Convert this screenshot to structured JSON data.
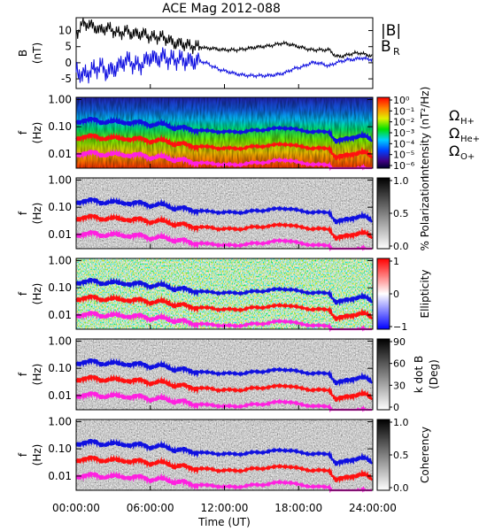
{
  "title": "ACE Mag 2012-088",
  "chart_data": [
    {
      "type": "line",
      "title": "ACE Mag 2012-088",
      "xlabel": "Time (UT)",
      "ylabel_main": "B",
      "ylabel_unit": "(nT)",
      "xlim": [
        0,
        24
      ],
      "ylim": [
        -8,
        14
      ],
      "yticks": [
        10,
        5,
        0,
        -5
      ],
      "legend_placement": "right",
      "series": [
        {
          "name": "|B|",
          "color": "#000000",
          "x": [
            0,
            0.5,
            1,
            1.5,
            2,
            2.5,
            3,
            3.5,
            4,
            4.5,
            5,
            5.5,
            6,
            6.5,
            7,
            7.5,
            8,
            8.5,
            9,
            9.5,
            10,
            10.5,
            11,
            11.5,
            12,
            12.5,
            13,
            13.5,
            14,
            14.5,
            15,
            15.5,
            16,
            16.5,
            17,
            17.5,
            18,
            18.5,
            19,
            19.5,
            20,
            20.5,
            21,
            21.5,
            22,
            22.5,
            23,
            23.5,
            24
          ],
          "values": [
            9,
            12,
            12,
            11,
            10,
            11,
            10,
            9,
            10,
            9,
            9,
            9,
            8,
            8,
            8,
            7,
            6,
            6,
            5.5,
            5,
            5,
            4.5,
            4.5,
            4.2,
            4,
            4,
            4,
            4.2,
            4.5,
            4.8,
            5,
            5.2,
            5.5,
            6,
            6,
            5.5,
            5,
            4.5,
            4,
            4,
            4,
            4,
            2,
            2,
            2.5,
            3,
            3,
            2.5,
            2
          ]
        },
        {
          "name": "B_R",
          "color": "#1010e0",
          "x": [
            0,
            0.5,
            1,
            1.5,
            2,
            2.5,
            3,
            3.5,
            4,
            4.5,
            5,
            5.5,
            6,
            6.5,
            7,
            7.5,
            8,
            8.5,
            9,
            9.5,
            10,
            10.5,
            11,
            11.5,
            12,
            12.5,
            13,
            13.5,
            14,
            14.5,
            15,
            15.5,
            16,
            16.5,
            17,
            17.5,
            18,
            18.5,
            19,
            19.5,
            20,
            20.5,
            21,
            21.5,
            22,
            22.5,
            23,
            23.5,
            24
          ],
          "values": [
            -2,
            -4,
            -3,
            -2,
            -1,
            -3,
            -2,
            -1,
            1,
            0,
            -1,
            0,
            2,
            1,
            2,
            1,
            1,
            1,
            0.5,
            0.5,
            0.5,
            0,
            -1,
            -2,
            -2.5,
            -3,
            -3.5,
            -3.8,
            -4,
            -4,
            -4,
            -4,
            -3.8,
            -3.5,
            -3,
            -2,
            -1.5,
            -1,
            0,
            0,
            -0.5,
            -1,
            0,
            0.5,
            1,
            1,
            1.5,
            1.2,
            1
          ]
        }
      ]
    },
    {
      "type": "heatmap",
      "ylabel_main": "f",
      "ylabel_unit": "(Hz)",
      "colorbar_label": "Intensity (nT²/Hz)",
      "colorbar_ticks": [
        "10⁰",
        "10⁻¹",
        "10⁻²",
        "10⁻³",
        "10⁻⁴",
        "10⁻⁵",
        "10⁻⁶"
      ],
      "colormap": "rainbow"
    },
    {
      "type": "heatmap",
      "ylabel_main": "f",
      "ylabel_unit": "(Hz)",
      "colorbar_label": "% Polarization",
      "colorbar_ticks": [
        "1.0",
        "0.5",
        "0.0"
      ],
      "colormap": "gray"
    },
    {
      "type": "heatmap",
      "ylabel_main": "f",
      "ylabel_unit": "(Hz)",
      "colorbar_label": "Ellipticity",
      "colorbar_ticks": [
        "1",
        "0",
        "−1"
      ],
      "colormap": "blue-white-red"
    },
    {
      "type": "heatmap",
      "ylabel_main": "f",
      "ylabel_unit": "(Hz)",
      "colorbar_label": "k dot B",
      "colorbar_label2": "(Deg)",
      "colorbar_ticks": [
        "90",
        "60",
        "30",
        "0"
      ],
      "colormap": "gray"
    },
    {
      "type": "heatmap",
      "ylabel_main": "f",
      "ylabel_unit": "(Hz)",
      "colorbar_label": "Coherency",
      "colorbar_ticks": [
        "1.0",
        "0.5",
        "0.0"
      ],
      "colormap": "gray"
    }
  ],
  "spectrogram_common": {
    "yticks": [
      "1.00",
      "0.10",
      "0.01"
    ],
    "ylim_hz": [
      0.003,
      1.2
    ],
    "yscale": "log",
    "xticks": [
      "00:00:00",
      "06:00:00",
      "12:00:00",
      "18:00:00",
      "24:00:00"
    ],
    "xlim_hours": [
      0,
      24
    ]
  },
  "gyrofrequency_lines": {
    "labels": {
      "H": "Ω",
      "H_sub": "H+",
      "He": "Ω",
      "He_sub": "He+",
      "O": "Ω",
      "O_sub": "O+"
    },
    "x": [
      0,
      0.5,
      1,
      1.5,
      2,
      2.5,
      3,
      3.5,
      4,
      4.5,
      5,
      5.5,
      6,
      6.5,
      7,
      7.5,
      8,
      8.5,
      9,
      9.5,
      10,
      10.5,
      11,
      11.5,
      12,
      12.5,
      13,
      13.5,
      14,
      14.5,
      15,
      15.5,
      16,
      16.5,
      17,
      17.5,
      18,
      18.5,
      19,
      19.5,
      20,
      20.5,
      21,
      21.5,
      22,
      22.5,
      23,
      23.5,
      24
    ],
    "H_hz": [
      0.14,
      0.18,
      0.18,
      0.17,
      0.15,
      0.16,
      0.15,
      0.14,
      0.15,
      0.14,
      0.14,
      0.14,
      0.12,
      0.12,
      0.12,
      0.11,
      0.09,
      0.09,
      0.085,
      0.08,
      0.075,
      0.07,
      0.07,
      0.065,
      0.065,
      0.065,
      0.065,
      0.065,
      0.07,
      0.075,
      0.075,
      0.08,
      0.085,
      0.09,
      0.09,
      0.085,
      0.075,
      0.07,
      0.065,
      0.065,
      0.065,
      0.065,
      0.03,
      0.03,
      0.038,
      0.045,
      0.045,
      0.04,
      0.03
    ],
    "He_hz": [
      0.035,
      0.045,
      0.045,
      0.042,
      0.038,
      0.04,
      0.038,
      0.035,
      0.038,
      0.035,
      0.035,
      0.035,
      0.03,
      0.03,
      0.03,
      0.028,
      0.023,
      0.023,
      0.021,
      0.02,
      0.019,
      0.018,
      0.018,
      0.016,
      0.016,
      0.016,
      0.016,
      0.016,
      0.018,
      0.019,
      0.019,
      0.02,
      0.021,
      0.023,
      0.023,
      0.021,
      0.019,
      0.018,
      0.016,
      0.016,
      0.016,
      0.016,
      0.0075,
      0.0075,
      0.0095,
      0.011,
      0.011,
      0.01,
      0.0075
    ],
    "O_hz": [
      0.009,
      0.011,
      0.011,
      0.0105,
      0.0095,
      0.01,
      0.0095,
      0.009,
      0.0095,
      0.009,
      0.009,
      0.009,
      0.0075,
      0.0075,
      0.0075,
      0.007,
      0.006,
      0.006,
      0.0055,
      0.005,
      0.0048,
      0.0045,
      0.0045,
      0.0042,
      0.004,
      0.004,
      0.004,
      0.0042,
      0.0045,
      0.0048,
      0.0048,
      0.005,
      0.0055,
      0.006,
      0.006,
      0.0055,
      0.0048,
      0.0045,
      0.0042,
      0.004,
      0.004,
      0.004,
      0.0019,
      0.0019,
      0.0024,
      0.0028,
      0.0028,
      0.0025,
      0.0019
    ],
    "H_color": "#1010e0",
    "He_color": "#ff1010",
    "O_color": "#ff20e0"
  },
  "legend": {
    "B_mag": "|B|",
    "B_R_main": "B",
    "B_R_sub": "R"
  }
}
